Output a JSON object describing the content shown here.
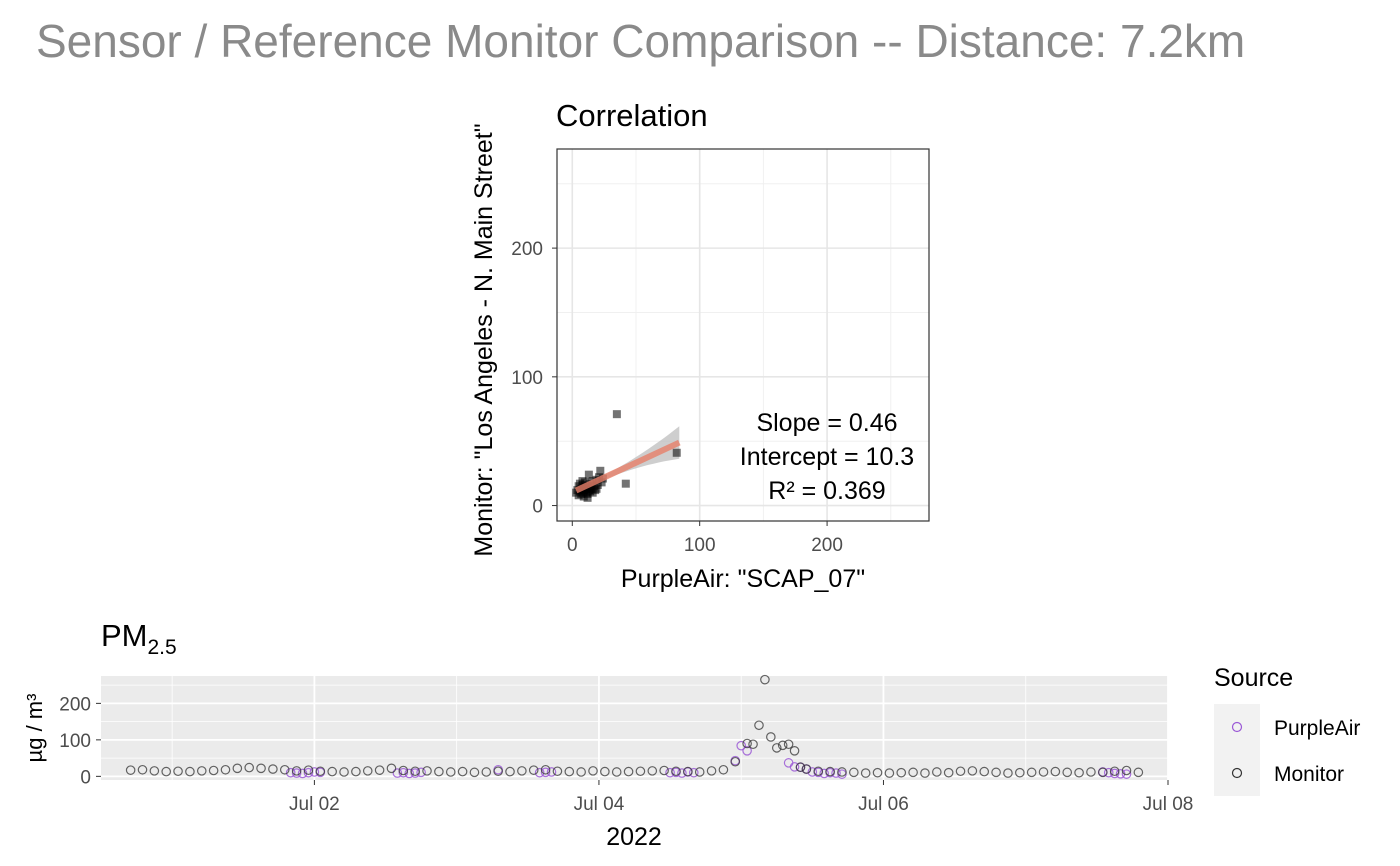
{
  "title": "Sensor / Reference Monitor Comparison -- Distance: 7.2km",
  "colors": {
    "purpleair": "#9b59d6",
    "monitor": "#333333",
    "regression": "#e8806a",
    "ci_band": "#bdbdbd"
  },
  "chart_data": [
    {
      "type": "scatter",
      "title": "Correlation",
      "xlabel": "PurpleAir: \"SCAP_07\"",
      "ylabel": "Monitor: \"Los Angeles - N. Main Street\"",
      "xlim": [
        -12,
        280
      ],
      "ylim": [
        -12,
        277
      ],
      "x_ticks": [
        0,
        100,
        200
      ],
      "x_tick_labels": [
        "0",
        "100",
        "200"
      ],
      "y_ticks": [
        0,
        100,
        200
      ],
      "y_tick_labels": [
        "0",
        "100",
        "200"
      ],
      "grid": true,
      "points": [
        [
          3,
          10
        ],
        [
          4,
          12
        ],
        [
          5,
          8
        ],
        [
          5,
          15
        ],
        [
          6,
          11
        ],
        [
          6,
          17
        ],
        [
          7,
          9
        ],
        [
          7,
          13
        ],
        [
          8,
          10
        ],
        [
          8,
          16
        ],
        [
          9,
          12
        ],
        [
          9,
          7
        ],
        [
          10,
          14
        ],
        [
          10,
          18
        ],
        [
          11,
          10
        ],
        [
          11,
          13
        ],
        [
          12,
          15
        ],
        [
          12,
          9
        ],
        [
          13,
          24
        ],
        [
          13,
          12
        ],
        [
          14,
          17
        ],
        [
          14,
          11
        ],
        [
          15,
          13
        ],
        [
          16,
          19
        ],
        [
          16,
          10
        ],
        [
          17,
          15
        ],
        [
          18,
          12
        ],
        [
          19,
          20
        ],
        [
          19,
          13
        ],
        [
          20,
          16
        ],
        [
          21,
          22
        ],
        [
          22,
          27
        ],
        [
          23,
          18
        ],
        [
          24,
          21
        ],
        [
          12,
          6
        ],
        [
          8,
          19
        ],
        [
          35,
          71
        ],
        [
          42,
          17
        ],
        [
          82,
          41
        ]
      ],
      "regression": {
        "slope": 0.46,
        "intercept": 10.3,
        "x_range": [
          3,
          84
        ]
      },
      "annotation": [
        "Slope = 0.46",
        "Intercept = 10.3",
        "R² = 0.369"
      ]
    },
    {
      "type": "scatter",
      "title_base": "PM",
      "title_sub": "2.5",
      "xlabel": "2022",
      "ylabel": "µg / m³",
      "ylim": [
        -10,
        275
      ],
      "y_ticks": [
        0,
        100,
        200
      ],
      "y_tick_labels": [
        "0",
        "100",
        "200"
      ],
      "x_range": [
        "Jun 30 12:00",
        "Jul 08 00:00"
      ],
      "x_ticks": [
        "Jul 02",
        "Jul 04",
        "Jul 06",
        "Jul 08"
      ],
      "grid": true,
      "legend_title": "Source",
      "legend_position": "right",
      "series": [
        {
          "name": "PurpleAir",
          "x": [
            "Jul 01 20:00",
            "Jul 01 21:00",
            "Jul 01 22:00",
            "Jul 01 23:00",
            "Jul 02 00:00",
            "Jul 02 01:00",
            "Jul 02 14:00",
            "Jul 02 15:00",
            "Jul 02 16:00",
            "Jul 02 17:00",
            "Jul 02 18:00",
            "Jul 03 07:00",
            "Jul 03 14:00",
            "Jul 03 15:00",
            "Jul 03 16:00",
            "Jul 04 12:00",
            "Jul 04 13:00",
            "Jul 04 14:00",
            "Jul 04 15:00",
            "Jul 04 16:00",
            "Jul 04 23:00",
            "Jul 05 00:00",
            "Jul 05 01:00",
            "Jul 05 08:00",
            "Jul 05 09:00",
            "Jul 05 10:00",
            "Jul 05 11:00",
            "Jul 05 12:00",
            "Jul 05 13:00",
            "Jul 05 14:00",
            "Jul 05 15:00",
            "Jul 05 16:00",
            "Jul 05 17:00",
            "Jul 07 13:00",
            "Jul 07 14:00",
            "Jul 07 15:00",
            "Jul 07 16:00",
            "Jul 07 17:00"
          ],
          "y": [
            10,
            9,
            8,
            10,
            12,
            11,
            9,
            10,
            8,
            9,
            11,
            18,
            10,
            11,
            12,
            10,
            11,
            9,
            12,
            10,
            43,
            84,
            70,
            37,
            26,
            25,
            20,
            12,
            11,
            8,
            10,
            9,
            6,
            12,
            10,
            8,
            7,
            6
          ]
        },
        {
          "name": "Monitor",
          "x": [
            "Jun 30 17:00",
            "Jun 30 19:00",
            "Jun 30 21:00",
            "Jun 30 23:00",
            "Jul 01 01:00",
            "Jul 01 03:00",
            "Jul 01 05:00",
            "Jul 01 07:00",
            "Jul 01 09:00",
            "Jul 01 11:00",
            "Jul 01 13:00",
            "Jul 01 15:00",
            "Jul 01 17:00",
            "Jul 01 19:00",
            "Jul 01 21:00",
            "Jul 01 23:00",
            "Jul 02 01:00",
            "Jul 02 03:00",
            "Jul 02 05:00",
            "Jul 02 07:00",
            "Jul 02 09:00",
            "Jul 02 11:00",
            "Jul 02 13:00",
            "Jul 02 15:00",
            "Jul 02 17:00",
            "Jul 02 19:00",
            "Jul 02 21:00",
            "Jul 02 23:00",
            "Jul 03 01:00",
            "Jul 03 03:00",
            "Jul 03 05:00",
            "Jul 03 07:00",
            "Jul 03 09:00",
            "Jul 03 11:00",
            "Jul 03 13:00",
            "Jul 03 15:00",
            "Jul 03 17:00",
            "Jul 03 19:00",
            "Jul 03 21:00",
            "Jul 03 23:00",
            "Jul 04 01:00",
            "Jul 04 03:00",
            "Jul 04 05:00",
            "Jul 04 07:00",
            "Jul 04 09:00",
            "Jul 04 11:00",
            "Jul 04 13:00",
            "Jul 04 15:00",
            "Jul 04 17:00",
            "Jul 04 19:00",
            "Jul 04 21:00",
            "Jul 04 23:00",
            "Jul 05 01:00",
            "Jul 05 02:00",
            "Jul 05 03:00",
            "Jul 05 04:00",
            "Jul 05 05:00",
            "Jul 05 06:00",
            "Jul 05 07:00",
            "Jul 05 08:00",
            "Jul 05 09:00",
            "Jul 05 10:00",
            "Jul 05 11:00",
            "Jul 05 13:00",
            "Jul 05 15:00",
            "Jul 05 17:00",
            "Jul 05 19:00",
            "Jul 05 21:00",
            "Jul 05 23:00",
            "Jul 06 01:00",
            "Jul 06 03:00",
            "Jul 06 05:00",
            "Jul 06 07:00",
            "Jul 06 09:00",
            "Jul 06 11:00",
            "Jul 06 13:00",
            "Jul 06 15:00",
            "Jul 06 17:00",
            "Jul 06 19:00",
            "Jul 06 21:00",
            "Jul 06 23:00",
            "Jul 07 01:00",
            "Jul 07 03:00",
            "Jul 07 05:00",
            "Jul 07 07:00",
            "Jul 07 09:00",
            "Jul 07 11:00",
            "Jul 07 13:00",
            "Jul 07 15:00",
            "Jul 07 17:00",
            "Jul 07 19:00"
          ],
          "y": [
            17,
            18,
            15,
            13,
            14,
            13,
            15,
            16,
            18,
            22,
            24,
            22,
            20,
            18,
            15,
            17,
            14,
            13,
            12,
            13,
            15,
            17,
            22,
            16,
            14,
            15,
            13,
            12,
            13,
            11,
            12,
            14,
            13,
            15,
            17,
            18,
            14,
            13,
            12,
            15,
            13,
            12,
            13,
            14,
            15,
            16,
            14,
            13,
            12,
            15,
            18,
            40,
            90,
            88,
            140,
            265,
            108,
            78,
            85,
            88,
            70,
            25,
            20,
            14,
            13,
            12,
            11,
            9,
            10,
            9,
            10,
            11,
            9,
            12,
            10,
            14,
            15,
            13,
            11,
            9,
            10,
            11,
            12,
            13,
            11,
            10,
            12,
            11,
            14,
            16,
            11
          ]
        }
      ]
    }
  ]
}
